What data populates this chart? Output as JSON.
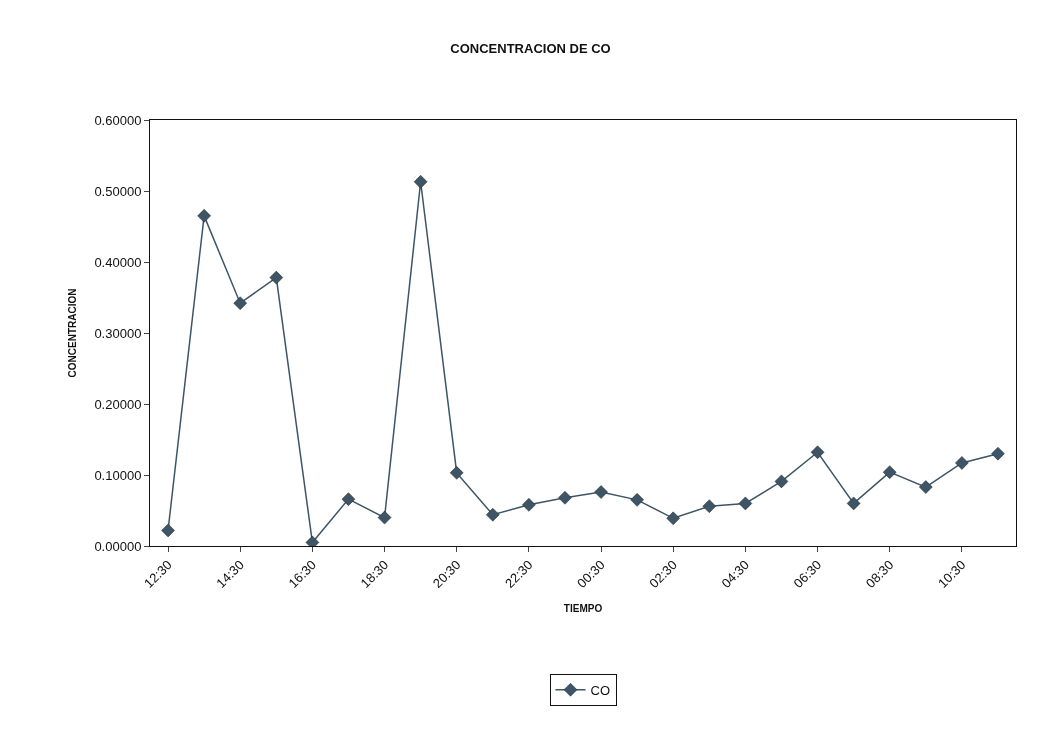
{
  "chart_data": {
    "type": "line",
    "title": "CONCENTRACION DE CO",
    "xlabel": "TIEMPO",
    "ylabel": "CONCENTRACION",
    "categories": [
      "12:30",
      null,
      "14:30",
      null,
      "16:30",
      null,
      "18:30",
      null,
      "20:30",
      null,
      "22:30",
      null,
      "00:30",
      null,
      "02:30",
      null,
      "04:30",
      null,
      "06:30",
      null,
      "08:30",
      null,
      "10:30",
      null
    ],
    "series": [
      {
        "name": "CO",
        "color": "#3d5566",
        "values": [
          0.022,
          0.465,
          0.342,
          0.378,
          0.005,
          0.066,
          0.04,
          0.513,
          0.103,
          0.044,
          0.058,
          0.068,
          0.076,
          0.065,
          0.039,
          0.056,
          0.06,
          0.091,
          0.132,
          0.06,
          0.104,
          0.083,
          0.117,
          0.13
        ]
      }
    ],
    "ylim": [
      0,
      0.6
    ],
    "yticks": [
      {
        "value": 0,
        "label": "0.00000"
      },
      {
        "value": 0.1,
        "label": "0.10000"
      },
      {
        "value": 0.2,
        "label": "0.20000"
      },
      {
        "value": 0.3,
        "label": "0.30000"
      },
      {
        "value": 0.4,
        "label": "0.40000"
      },
      {
        "value": 0.5,
        "label": "0.50000"
      },
      {
        "value": 0.6,
        "label": "0.60000"
      }
    ],
    "legend": "bottom",
    "marker": "diamond",
    "line_style": "solid"
  }
}
